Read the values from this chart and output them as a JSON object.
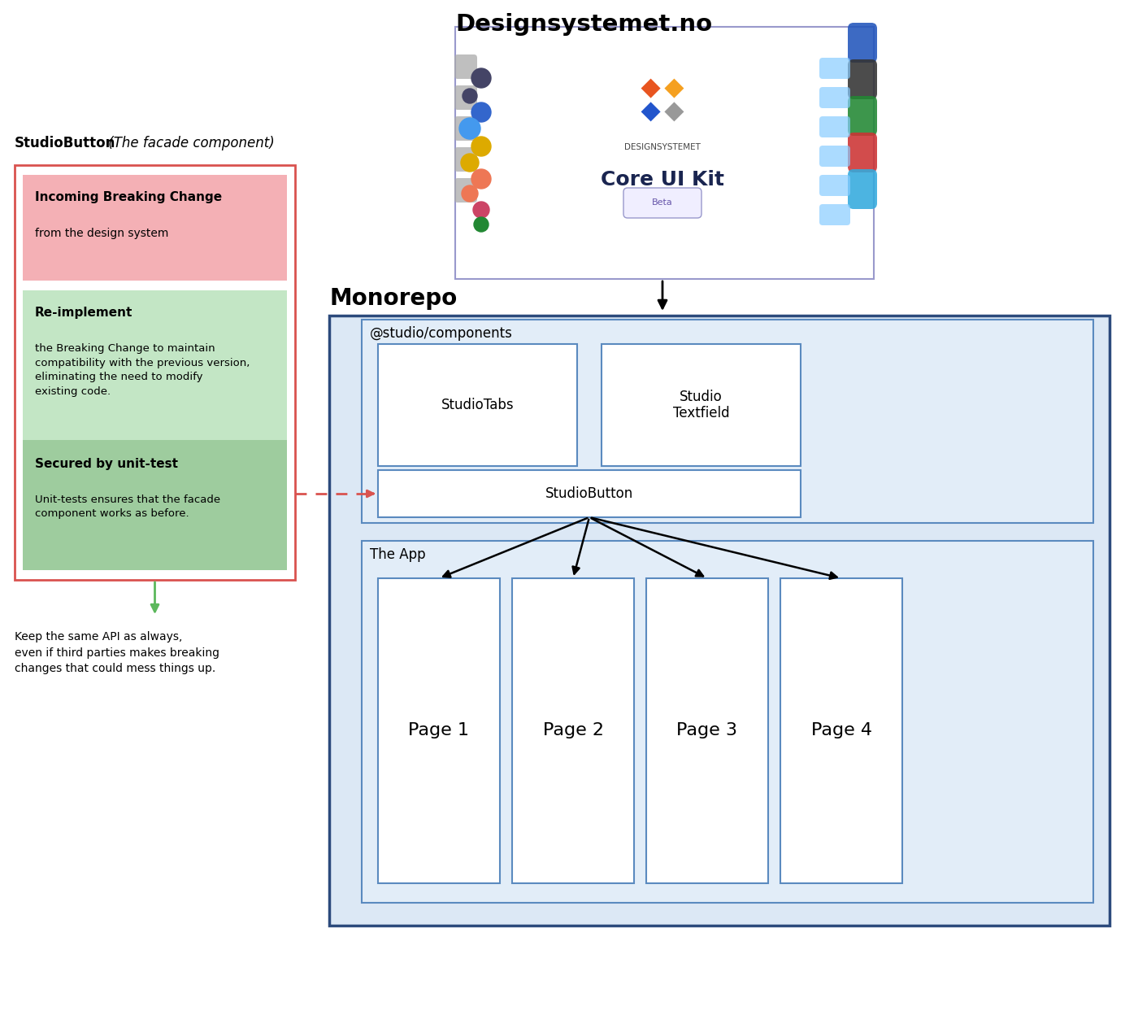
{
  "title_designsystem": "Designsystemet.no",
  "title_monorepo": "Monorepo",
  "label_studio_components": "@studio/components",
  "label_the_app": "The App",
  "label_studio_tabs": "StudioTabs",
  "label_studio_textfield": "Studio\nTextfield",
  "label_studio_button": "StudioButton",
  "pages": [
    "Page 1",
    "Page 2",
    "Page 3",
    "Page 4"
  ],
  "facade_title": "StudioButton",
  "facade_subtitle": " (The facade component)",
  "card1_title": "Incoming Breaking Change",
  "card1_subtitle": "from the design system",
  "card2_title": "Re-implement",
  "card2_text": "the Breaking Change to maintain\ncompatibility with the previous version,\neliminating the need to modify\nexisting code.",
  "card3_title": "Secured by unit-test",
  "card3_text": "Unit-tests ensures that the facade\ncomponent works as before.",
  "bottom_text": "Keep the same API as always,\neven if third parties makes breaking\nchanges that could mess things up.",
  "color_pink_bg": "#f4b0b5",
  "color_green_light": "#c3e6c5",
  "color_green_medium": "#9ecc9e",
  "color_red_border": "#d9534f",
  "color_monorepo_bg": "#dce8f5",
  "color_monorepo_border": "#2c4a7c",
  "color_components_bg": "#e2edf8",
  "color_components_border": "#5a8abf",
  "color_app_bg": "#e2edf8",
  "color_app_border": "#5a8abf",
  "color_page_border": "#5a8abf",
  "color_designsystem_border": "#9999cc",
  "color_green_arrow": "#5cb85c",
  "background_color": "#ffffff"
}
